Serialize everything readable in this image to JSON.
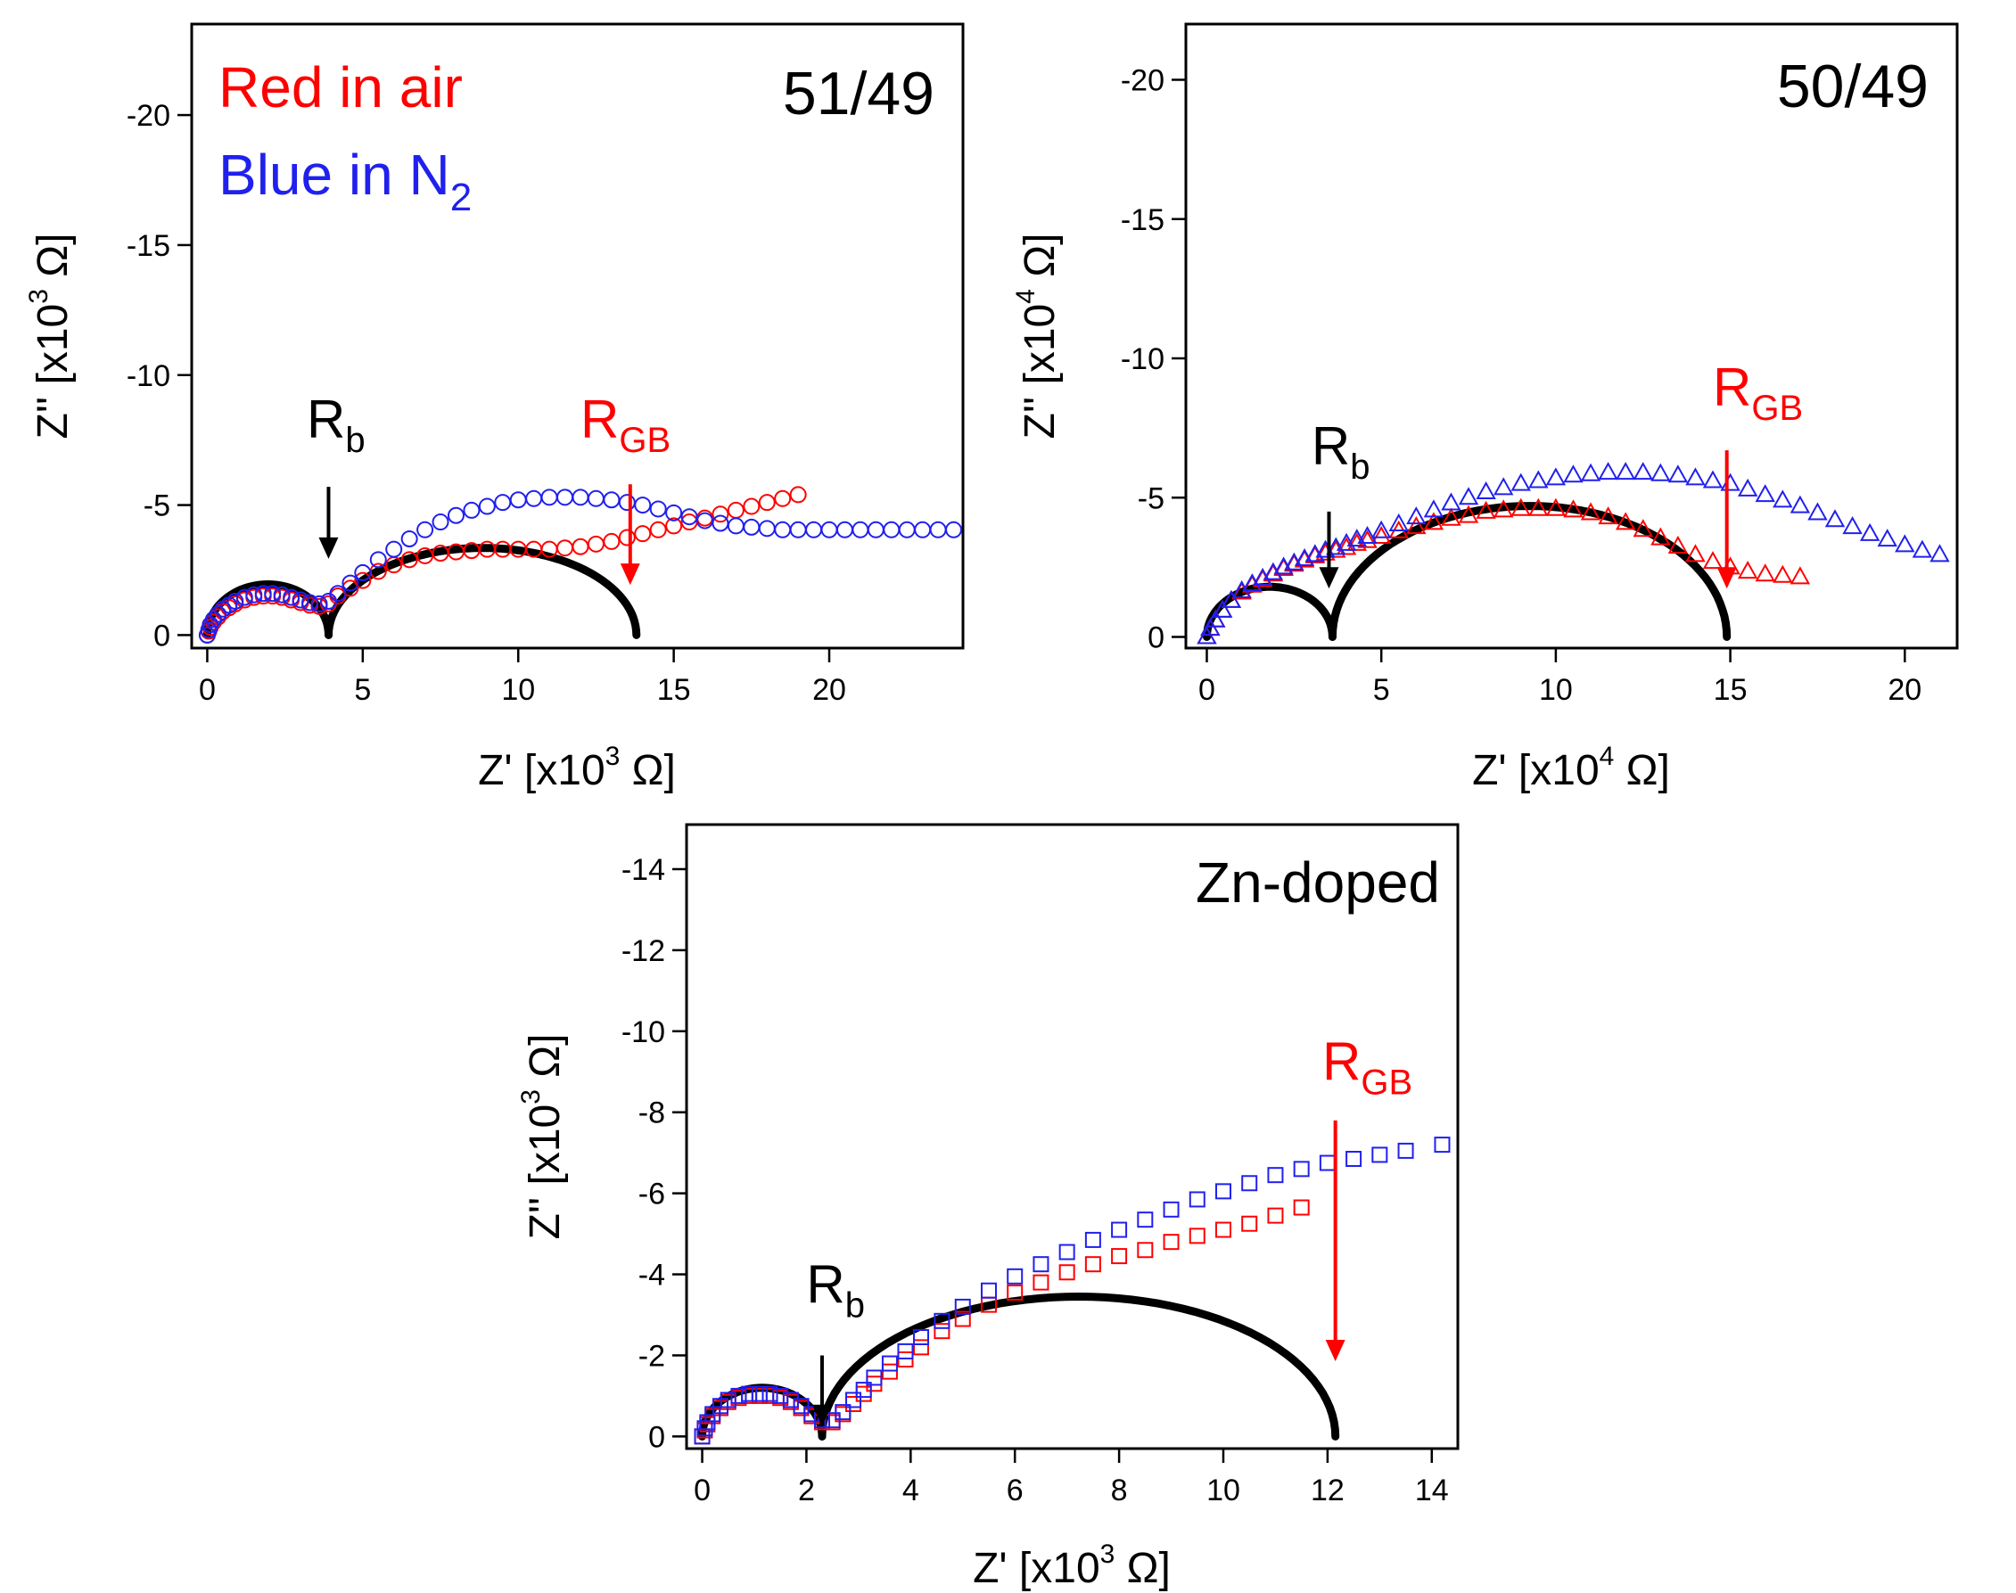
{
  "figure": {
    "colors": {
      "air": "#ff0000",
      "n2": "#2020ee",
      "fit": "#000000",
      "arrow_gb": "#ff0000",
      "arrow_b": "#000000"
    },
    "legend": {
      "line1": "Red in air",
      "line2_main": "Blue in N",
      "line2_sub": "2"
    },
    "common": {
      "ylabel_main": "Z'' [x10",
      "xlabel_main": "Z' [x10",
      "unit": " Ω]",
      "rb_main": "R",
      "rb_sub": "b",
      "rgb_main": "R",
      "rgb_sub": "GB"
    }
  },
  "chart_data": [
    {
      "type": "scatter",
      "title": "51/49",
      "xlabel": "Z' [x10^3 Ω]",
      "ylabel": "Z'' [x10^3 Ω]",
      "x_exponent": "3",
      "y_exponent": "3",
      "xlim": [
        -0.5,
        24.3
      ],
      "ylim": [
        0.5,
        -23.5
      ],
      "xticks": [
        0,
        5,
        10,
        15,
        20
      ],
      "yticks": [
        0,
        -5,
        -10,
        -15,
        -20
      ],
      "marker": "circle",
      "legend": "top-left",
      "grid": false,
      "series": [
        {
          "name": "Red in air",
          "color": "#ff0000",
          "x": [
            0.0,
            0.05,
            0.1,
            0.2,
            0.35,
            0.5,
            0.7,
            0.9,
            1.2,
            1.5,
            1.8,
            2.1,
            2.4,
            2.7,
            3.0,
            3.3,
            3.6,
            3.9,
            4.2,
            4.6,
            5.0,
            5.5,
            6.0,
            6.5,
            7.0,
            7.5,
            8.0,
            8.5,
            9.0,
            9.5,
            10.0,
            10.5,
            11.0,
            11.5,
            12.0,
            12.5,
            13.0,
            13.5,
            14.0,
            14.5,
            15.0,
            15.5,
            16.0,
            16.5,
            17.0,
            17.5,
            18.0,
            18.5,
            19.0
          ],
          "y": [
            0.0,
            -0.15,
            -0.3,
            -0.5,
            -0.7,
            -0.9,
            -1.05,
            -1.2,
            -1.35,
            -1.45,
            -1.5,
            -1.5,
            -1.45,
            -1.35,
            -1.25,
            -1.15,
            -1.1,
            -1.2,
            -1.5,
            -1.8,
            -2.1,
            -2.45,
            -2.7,
            -2.9,
            -3.05,
            -3.15,
            -3.2,
            -3.25,
            -3.3,
            -3.3,
            -3.3,
            -3.3,
            -3.3,
            -3.35,
            -3.4,
            -3.5,
            -3.6,
            -3.75,
            -3.9,
            -4.05,
            -4.2,
            -4.35,
            -4.5,
            -4.65,
            -4.8,
            -4.95,
            -5.1,
            -5.25,
            -5.4
          ]
        },
        {
          "name": "Blue in N2",
          "color": "#2020ee",
          "x": [
            0.0,
            0.05,
            0.1,
            0.2,
            0.35,
            0.5,
            0.7,
            0.9,
            1.2,
            1.5,
            1.8,
            2.1,
            2.4,
            2.7,
            3.0,
            3.3,
            3.6,
            3.9,
            4.2,
            4.6,
            5.0,
            5.5,
            6.0,
            6.5,
            7.0,
            7.5,
            8.0,
            8.5,
            9.0,
            9.5,
            10.0,
            10.5,
            11.0,
            11.5,
            12.0,
            12.5,
            13.0,
            13.5,
            14.0,
            14.5,
            15.0,
            15.5,
            16.0,
            16.5,
            17.0,
            17.5,
            18.0,
            18.5,
            19.0,
            19.5,
            20.0,
            20.5,
            21.0,
            21.5,
            22.0,
            22.5,
            23.0,
            23.5,
            24.0
          ],
          "y": [
            0.0,
            -0.2,
            -0.4,
            -0.6,
            -0.8,
            -1.0,
            -1.15,
            -1.3,
            -1.45,
            -1.55,
            -1.6,
            -1.6,
            -1.55,
            -1.45,
            -1.35,
            -1.25,
            -1.2,
            -1.3,
            -1.6,
            -2.0,
            -2.4,
            -2.9,
            -3.3,
            -3.7,
            -4.05,
            -4.35,
            -4.6,
            -4.8,
            -4.95,
            -5.1,
            -5.2,
            -5.25,
            -5.3,
            -5.3,
            -5.3,
            -5.25,
            -5.2,
            -5.1,
            -5.0,
            -4.85,
            -4.7,
            -4.55,
            -4.4,
            -4.3,
            -4.2,
            -4.15,
            -4.1,
            -4.05,
            -4.05,
            -4.05,
            -4.05,
            -4.05,
            -4.05,
            -4.05,
            -4.05,
            -4.05,
            -4.05,
            -4.05,
            -4.05
          ]
        }
      ],
      "fit_arcs": [
        {
          "x_start": 0.0,
          "x_end": 3.9,
          "peak": -1.95
        },
        {
          "x_start": 3.9,
          "x_end": 13.8,
          "peak": -3.35
        }
      ],
      "annotations": [
        {
          "label": "Rb",
          "color": "#000000",
          "x": 3.9,
          "y_from": -5.7,
          "y_to": -3.0,
          "label_x": 3.2,
          "label_y": -7.6
        },
        {
          "label": "RGB",
          "color": "#ff0000",
          "x": 13.6,
          "y_from": -5.8,
          "y_to": -2.0,
          "label_x": 12.0,
          "label_y": -7.6
        }
      ]
    },
    {
      "type": "scatter",
      "title": "50/49",
      "xlabel": "Z' [x10^4 Ω]",
      "ylabel": "Z'' [x10^4 Ω]",
      "x_exponent": "4",
      "y_exponent": "4",
      "xlim": [
        -0.6,
        21.5
      ],
      "ylim": [
        0.4,
        -22.0
      ],
      "xticks": [
        0,
        5,
        10,
        15,
        20
      ],
      "yticks": [
        0,
        -5,
        -10,
        -15,
        -20
      ],
      "marker": "triangle",
      "grid": false,
      "series": [
        {
          "name": "Red in air",
          "color": "#ff0000",
          "x": [
            0.0,
            0.1,
            0.25,
            0.45,
            0.7,
            1.0,
            1.3,
            1.6,
            1.9,
            2.2,
            2.5,
            2.8,
            3.1,
            3.4,
            3.7,
            4.0,
            4.3,
            4.6,
            5.0,
            5.5,
            6.0,
            6.5,
            7.0,
            7.5,
            8.0,
            8.5,
            9.0,
            9.5,
            10.0,
            10.5,
            11.0,
            11.5,
            12.0,
            12.5,
            13.0,
            13.5,
            14.0,
            14.5,
            15.0,
            15.5,
            16.0,
            16.5,
            17.0
          ],
          "y": [
            0.0,
            -0.3,
            -0.6,
            -0.95,
            -1.3,
            -1.6,
            -1.85,
            -2.05,
            -2.25,
            -2.45,
            -2.6,
            -2.75,
            -2.9,
            -3.0,
            -3.1,
            -3.2,
            -3.35,
            -3.45,
            -3.6,
            -3.8,
            -3.95,
            -4.1,
            -4.25,
            -4.35,
            -4.5,
            -4.55,
            -4.6,
            -4.6,
            -4.6,
            -4.55,
            -4.45,
            -4.3,
            -4.1,
            -3.85,
            -3.55,
            -3.25,
            -2.95,
            -2.7,
            -2.5,
            -2.35,
            -2.25,
            -2.2,
            -2.15
          ]
        },
        {
          "name": "Blue in N2",
          "color": "#2020ee",
          "x": [
            0.0,
            0.1,
            0.25,
            0.45,
            0.7,
            1.0,
            1.3,
            1.6,
            1.9,
            2.2,
            2.5,
            2.8,
            3.1,
            3.4,
            3.7,
            4.0,
            4.3,
            4.6,
            5.0,
            5.5,
            6.0,
            6.5,
            7.0,
            7.5,
            8.0,
            8.5,
            9.0,
            9.5,
            10.0,
            10.5,
            11.0,
            11.5,
            12.0,
            12.5,
            13.0,
            13.5,
            14.0,
            14.5,
            15.0,
            15.5,
            16.0,
            16.5,
            17.0,
            17.5,
            18.0,
            18.5,
            19.0,
            19.5,
            20.0,
            20.5,
            21.0
          ],
          "y": [
            0.0,
            -0.3,
            -0.6,
            -0.95,
            -1.3,
            -1.65,
            -1.9,
            -2.1,
            -2.3,
            -2.5,
            -2.65,
            -2.8,
            -2.95,
            -3.1,
            -3.2,
            -3.35,
            -3.5,
            -3.6,
            -3.8,
            -4.05,
            -4.3,
            -4.55,
            -4.8,
            -5.0,
            -5.2,
            -5.35,
            -5.5,
            -5.6,
            -5.7,
            -5.8,
            -5.85,
            -5.9,
            -5.9,
            -5.9,
            -5.85,
            -5.8,
            -5.7,
            -5.6,
            -5.5,
            -5.3,
            -5.1,
            -4.9,
            -4.7,
            -4.45,
            -4.2,
            -3.95,
            -3.7,
            -3.5,
            -3.3,
            -3.1,
            -2.95
          ]
        }
      ],
      "fit_arcs": [
        {
          "x_start": 0.0,
          "x_end": 3.6,
          "peak": -1.8
        },
        {
          "x_start": 3.6,
          "x_end": 14.9,
          "peak": -4.7
        }
      ],
      "annotations": [
        {
          "label": "Rb",
          "color": "#000000",
          "x": 3.5,
          "y_from": -4.5,
          "y_to": -1.8,
          "label_x": 3.0,
          "label_y": -6.2
        },
        {
          "label": "RGB",
          "color": "#ff0000",
          "x": 14.9,
          "y_from": -6.7,
          "y_to": -1.8,
          "label_x": 14.5,
          "label_y": -8.3
        }
      ]
    },
    {
      "type": "scatter",
      "title": "Zn-doped",
      "xlabel": "Z' [x10^3 Ω]",
      "ylabel": "Z'' [x10^3 Ω]",
      "x_exponent": "3",
      "y_exponent": "3",
      "xlim": [
        -0.3,
        14.5
      ],
      "ylim": [
        0.3,
        -15.1
      ],
      "xticks": [
        0,
        2,
        4,
        6,
        8,
        10,
        12,
        14
      ],
      "yticks": [
        0,
        -2,
        -4,
        -6,
        -8,
        -10,
        -12,
        -14
      ],
      "marker": "square",
      "grid": false,
      "series": [
        {
          "name": "Red in air",
          "color": "#ff0000",
          "x": [
            0.0,
            0.05,
            0.1,
            0.2,
            0.35,
            0.5,
            0.7,
            0.9,
            1.1,
            1.3,
            1.5,
            1.7,
            1.9,
            2.1,
            2.3,
            2.5,
            2.7,
            2.9,
            3.1,
            3.3,
            3.6,
            3.9,
            4.2,
            4.6,
            5.0,
            5.5,
            6.0,
            6.5,
            7.0,
            7.5,
            8.0,
            8.5,
            9.0,
            9.5,
            10.0,
            10.5,
            11.0,
            11.5
          ],
          "y": [
            0.0,
            -0.15,
            -0.3,
            -0.5,
            -0.7,
            -0.85,
            -0.95,
            -1.0,
            -1.0,
            -1.0,
            -0.95,
            -0.85,
            -0.7,
            -0.5,
            -0.35,
            -0.35,
            -0.55,
            -0.8,
            -1.05,
            -1.3,
            -1.6,
            -1.9,
            -2.2,
            -2.6,
            -2.9,
            -3.25,
            -3.55,
            -3.8,
            -4.05,
            -4.25,
            -4.45,
            -4.6,
            -4.8,
            -4.95,
            -5.1,
            -5.25,
            -5.45,
            -5.65
          ]
        },
        {
          "name": "Blue in N2",
          "color": "#2020ee",
          "x": [
            0.0,
            0.05,
            0.1,
            0.2,
            0.35,
            0.5,
            0.7,
            0.9,
            1.1,
            1.3,
            1.5,
            1.7,
            1.9,
            2.1,
            2.3,
            2.5,
            2.7,
            2.9,
            3.1,
            3.3,
            3.6,
            3.9,
            4.2,
            4.6,
            5.0,
            5.5,
            6.0,
            6.5,
            7.0,
            7.5,
            8.0,
            8.5,
            9.0,
            9.5,
            10.0,
            10.5,
            11.0,
            11.5,
            12.0,
            12.5,
            13.0,
            13.5,
            14.2
          ],
          "y": [
            0.0,
            -0.2,
            -0.35,
            -0.55,
            -0.75,
            -0.9,
            -1.0,
            -1.05,
            -1.05,
            -1.05,
            -1.0,
            -0.9,
            -0.75,
            -0.55,
            -0.4,
            -0.4,
            -0.6,
            -0.9,
            -1.15,
            -1.45,
            -1.8,
            -2.1,
            -2.45,
            -2.85,
            -3.2,
            -3.6,
            -3.95,
            -4.25,
            -4.55,
            -4.85,
            -5.1,
            -5.35,
            -5.6,
            -5.85,
            -6.05,
            -6.25,
            -6.45,
            -6.6,
            -6.75,
            -6.85,
            -6.95,
            -7.05,
            -7.2
          ]
        }
      ],
      "fit_arcs": [
        {
          "x_start": 0.0,
          "x_end": 2.3,
          "peak": -1.2
        },
        {
          "x_start": 2.3,
          "x_end": 12.15,
          "peak": -3.45
        }
      ],
      "annotations": [
        {
          "label": "Rb",
          "color": "#000000",
          "x": 2.3,
          "y_from": -2.0,
          "y_to": -0.3,
          "label_x": 2.0,
          "label_y": -3.3
        },
        {
          "label": "RGB",
          "color": "#ff0000",
          "x": 12.15,
          "y_from": -7.8,
          "y_to": -1.9,
          "label_x": 11.9,
          "label_y": -8.8
        }
      ]
    }
  ]
}
